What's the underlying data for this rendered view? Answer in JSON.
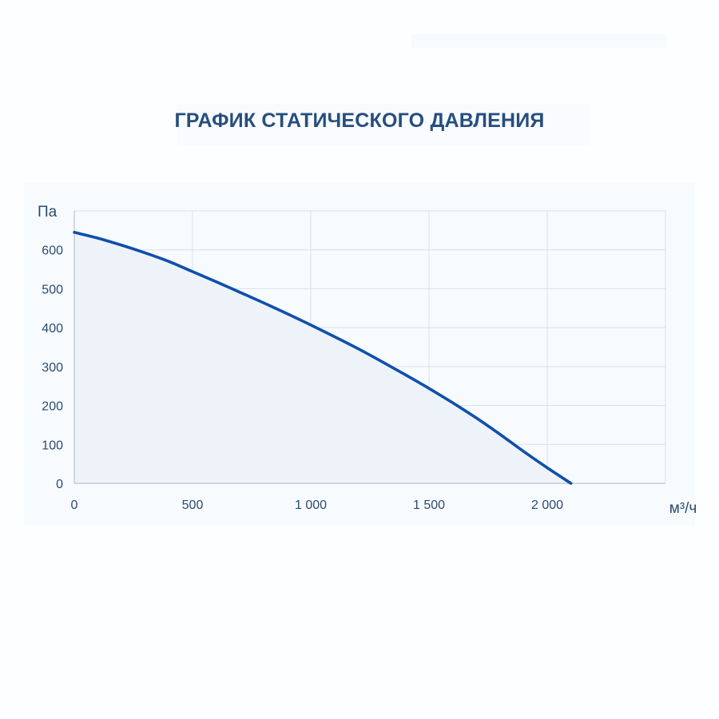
{
  "chart_data": {
    "type": "area",
    "title": "ГРАФИК СТАТИЧЕСКОГО ДАВЛЕНИЯ",
    "xlabel": "м³/ч",
    "ylabel": "Па",
    "xlim": [
      0,
      2500
    ],
    "ylim": [
      0,
      700
    ],
    "x_ticks": [
      0,
      500,
      1000,
      1500,
      2000,
      2500
    ],
    "x_tick_labels": [
      "0",
      "500",
      "1 000",
      "1 500",
      "2 000",
      ""
    ],
    "y_ticks": [
      0,
      100,
      200,
      300,
      400,
      500,
      600,
      700
    ],
    "y_tick_labels": [
      "0",
      "100",
      "200",
      "300",
      "400",
      "500",
      "600",
      ""
    ],
    "grid": true,
    "series": [
      {
        "x": [
          0,
          100,
          200,
          300,
          400,
          500,
          600,
          700,
          800,
          900,
          1000,
          1100,
          1200,
          1300,
          1400,
          1500,
          1600,
          1700,
          1800,
          1900,
          2000,
          2100
        ],
        "y": [
          645,
          630,
          612,
          592,
          570,
          544,
          518,
          491,
          464,
          436,
          407,
          377,
          346,
          313,
          279,
          244,
          207,
          168,
          126,
          82,
          40,
          0
        ]
      }
    ],
    "colors": {
      "line": "#0e4fad",
      "fill": "#eef3fa",
      "grid": "#d9e0ea",
      "axis": "#b9c3d0",
      "text": "#294a72"
    }
  }
}
